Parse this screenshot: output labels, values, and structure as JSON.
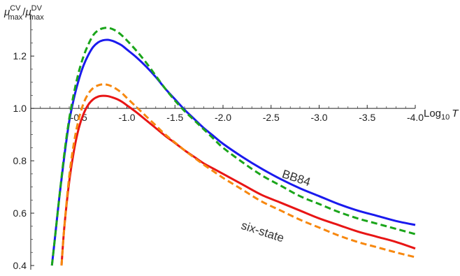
{
  "chart_data": {
    "type": "line",
    "title": "",
    "xlabel": {
      "base": "Log",
      "sub": "10",
      "var": "T"
    },
    "ylabel": {
      "mu1": "μ",
      "sup1": "CV",
      "sub1": "max",
      "slash": "/",
      "mu2": "μ",
      "sup2": "DV",
      "sub2": "max"
    },
    "xlim": [
      0.0,
      -4.0
    ],
    "ylim": [
      0.4,
      1.35
    ],
    "x_axis_crosses_y": 1.0,
    "xticks": [
      -0.5,
      -1.0,
      -1.5,
      -2.0,
      -2.5,
      -3.0,
      -3.5,
      -4.0
    ],
    "xtick_labels": [
      "-0.5",
      "-1.0",
      "-1.5",
      "-2.0",
      "-2.5",
      "-3.0",
      "-3.5",
      "-4.0"
    ],
    "yticks": [
      0.4,
      0.6,
      0.8,
      1.0,
      1.2
    ],
    "ytick_labels": [
      "0.4",
      "0.6",
      "0.8",
      "1.0",
      "1.2"
    ],
    "grid": false,
    "annotations": [
      {
        "text": "BB84",
        "x": -2.75,
        "y": 0.72,
        "angle": 18
      },
      {
        "text": "six-state",
        "x": -2.4,
        "y": 0.515,
        "angle": 18
      }
    ],
    "series": [
      {
        "color": "#1a1aee",
        "style": "solid",
        "x": [
          -0.22,
          -0.25,
          -0.3,
          -0.35,
          -0.4,
          -0.45,
          -0.5,
          -0.55,
          -0.6,
          -0.65,
          -0.7,
          -0.75,
          -0.8,
          -0.85,
          -0.9,
          -0.95,
          -1.0,
          -1.1,
          -1.2,
          -1.3,
          -1.4,
          -1.5,
          -1.6,
          -1.7,
          -1.8,
          -1.9,
          -2.0,
          -2.2,
          -2.4,
          -2.6,
          -2.8,
          -3.0,
          -3.2,
          -3.4,
          -3.6,
          -3.8,
          -4.0
        ],
        "y": [
          0.4,
          0.5,
          0.67,
          0.82,
          0.95,
          1.04,
          1.11,
          1.165,
          1.205,
          1.235,
          1.252,
          1.26,
          1.262,
          1.258,
          1.25,
          1.24,
          1.225,
          1.195,
          1.16,
          1.12,
          1.075,
          1.035,
          0.995,
          0.96,
          0.925,
          0.895,
          0.865,
          0.815,
          0.77,
          0.73,
          0.695,
          0.665,
          0.635,
          0.61,
          0.59,
          0.57,
          0.555
        ]
      },
      {
        "color": "#1aa51a",
        "style": "dashed",
        "x": [
          -0.22,
          -0.25,
          -0.3,
          -0.35,
          -0.4,
          -0.45,
          -0.5,
          -0.55,
          -0.6,
          -0.65,
          -0.7,
          -0.75,
          -0.8,
          -0.85,
          -0.9,
          -0.95,
          -1.0,
          -1.1,
          -1.2,
          -1.3,
          -1.4,
          -1.5,
          -1.6,
          -1.7,
          -1.8,
          -1.9,
          -2.0,
          -2.2,
          -2.4,
          -2.6,
          -2.8,
          -3.0,
          -3.2,
          -3.4,
          -3.6,
          -3.8,
          -4.0
        ],
        "y": [
          0.4,
          0.5,
          0.67,
          0.83,
          0.96,
          1.06,
          1.14,
          1.2,
          1.245,
          1.28,
          1.298,
          1.306,
          1.308,
          1.303,
          1.293,
          1.278,
          1.26,
          1.22,
          1.175,
          1.125,
          1.075,
          1.03,
          0.99,
          0.955,
          0.92,
          0.885,
          0.85,
          0.795,
          0.745,
          0.705,
          0.665,
          0.635,
          0.605,
          0.58,
          0.56,
          0.54,
          0.52
        ]
      },
      {
        "color": "#e81515",
        "style": "solid",
        "x": [
          -0.32,
          -0.35,
          -0.4,
          -0.45,
          -0.5,
          -0.55,
          -0.6,
          -0.65,
          -0.7,
          -0.75,
          -0.8,
          -0.85,
          -0.9,
          -0.95,
          -1.0,
          -1.1,
          -1.2,
          -1.3,
          -1.4,
          -1.5,
          -1.6,
          -1.7,
          -1.8,
          -1.9,
          -2.0,
          -2.2,
          -2.4,
          -2.6,
          -2.8,
          -3.0,
          -3.2,
          -3.4,
          -3.6,
          -3.8,
          -4.0
        ],
        "y": [
          0.4,
          0.55,
          0.72,
          0.84,
          0.925,
          0.98,
          1.015,
          1.035,
          1.045,
          1.048,
          1.047,
          1.042,
          1.035,
          1.025,
          1.012,
          0.985,
          0.955,
          0.925,
          0.895,
          0.868,
          0.84,
          0.815,
          0.79,
          0.77,
          0.75,
          0.71,
          0.67,
          0.64,
          0.61,
          0.58,
          0.555,
          0.53,
          0.51,
          0.49,
          0.465
        ]
      },
      {
        "color": "#f7880f",
        "style": "dashed",
        "x": [
          -0.32,
          -0.35,
          -0.4,
          -0.45,
          -0.5,
          -0.55,
          -0.6,
          -0.65,
          -0.7,
          -0.75,
          -0.8,
          -0.85,
          -0.9,
          -0.95,
          -1.0,
          -1.1,
          -1.2,
          -1.3,
          -1.4,
          -1.5,
          -1.6,
          -1.7,
          -1.8,
          -1.9,
          -2.0,
          -2.2,
          -2.4,
          -2.6,
          -2.8,
          -3.0,
          -3.2,
          -3.4,
          -3.6,
          -3.8,
          -4.0
        ],
        "y": [
          0.4,
          0.55,
          0.74,
          0.87,
          0.96,
          1.02,
          1.057,
          1.078,
          1.088,
          1.092,
          1.09,
          1.083,
          1.072,
          1.058,
          1.04,
          1.005,
          0.97,
          0.935,
          0.9,
          0.87,
          0.84,
          0.812,
          0.785,
          0.76,
          0.735,
          0.69,
          0.645,
          0.61,
          0.575,
          0.545,
          0.515,
          0.49,
          0.47,
          0.45,
          0.432
        ]
      }
    ]
  }
}
